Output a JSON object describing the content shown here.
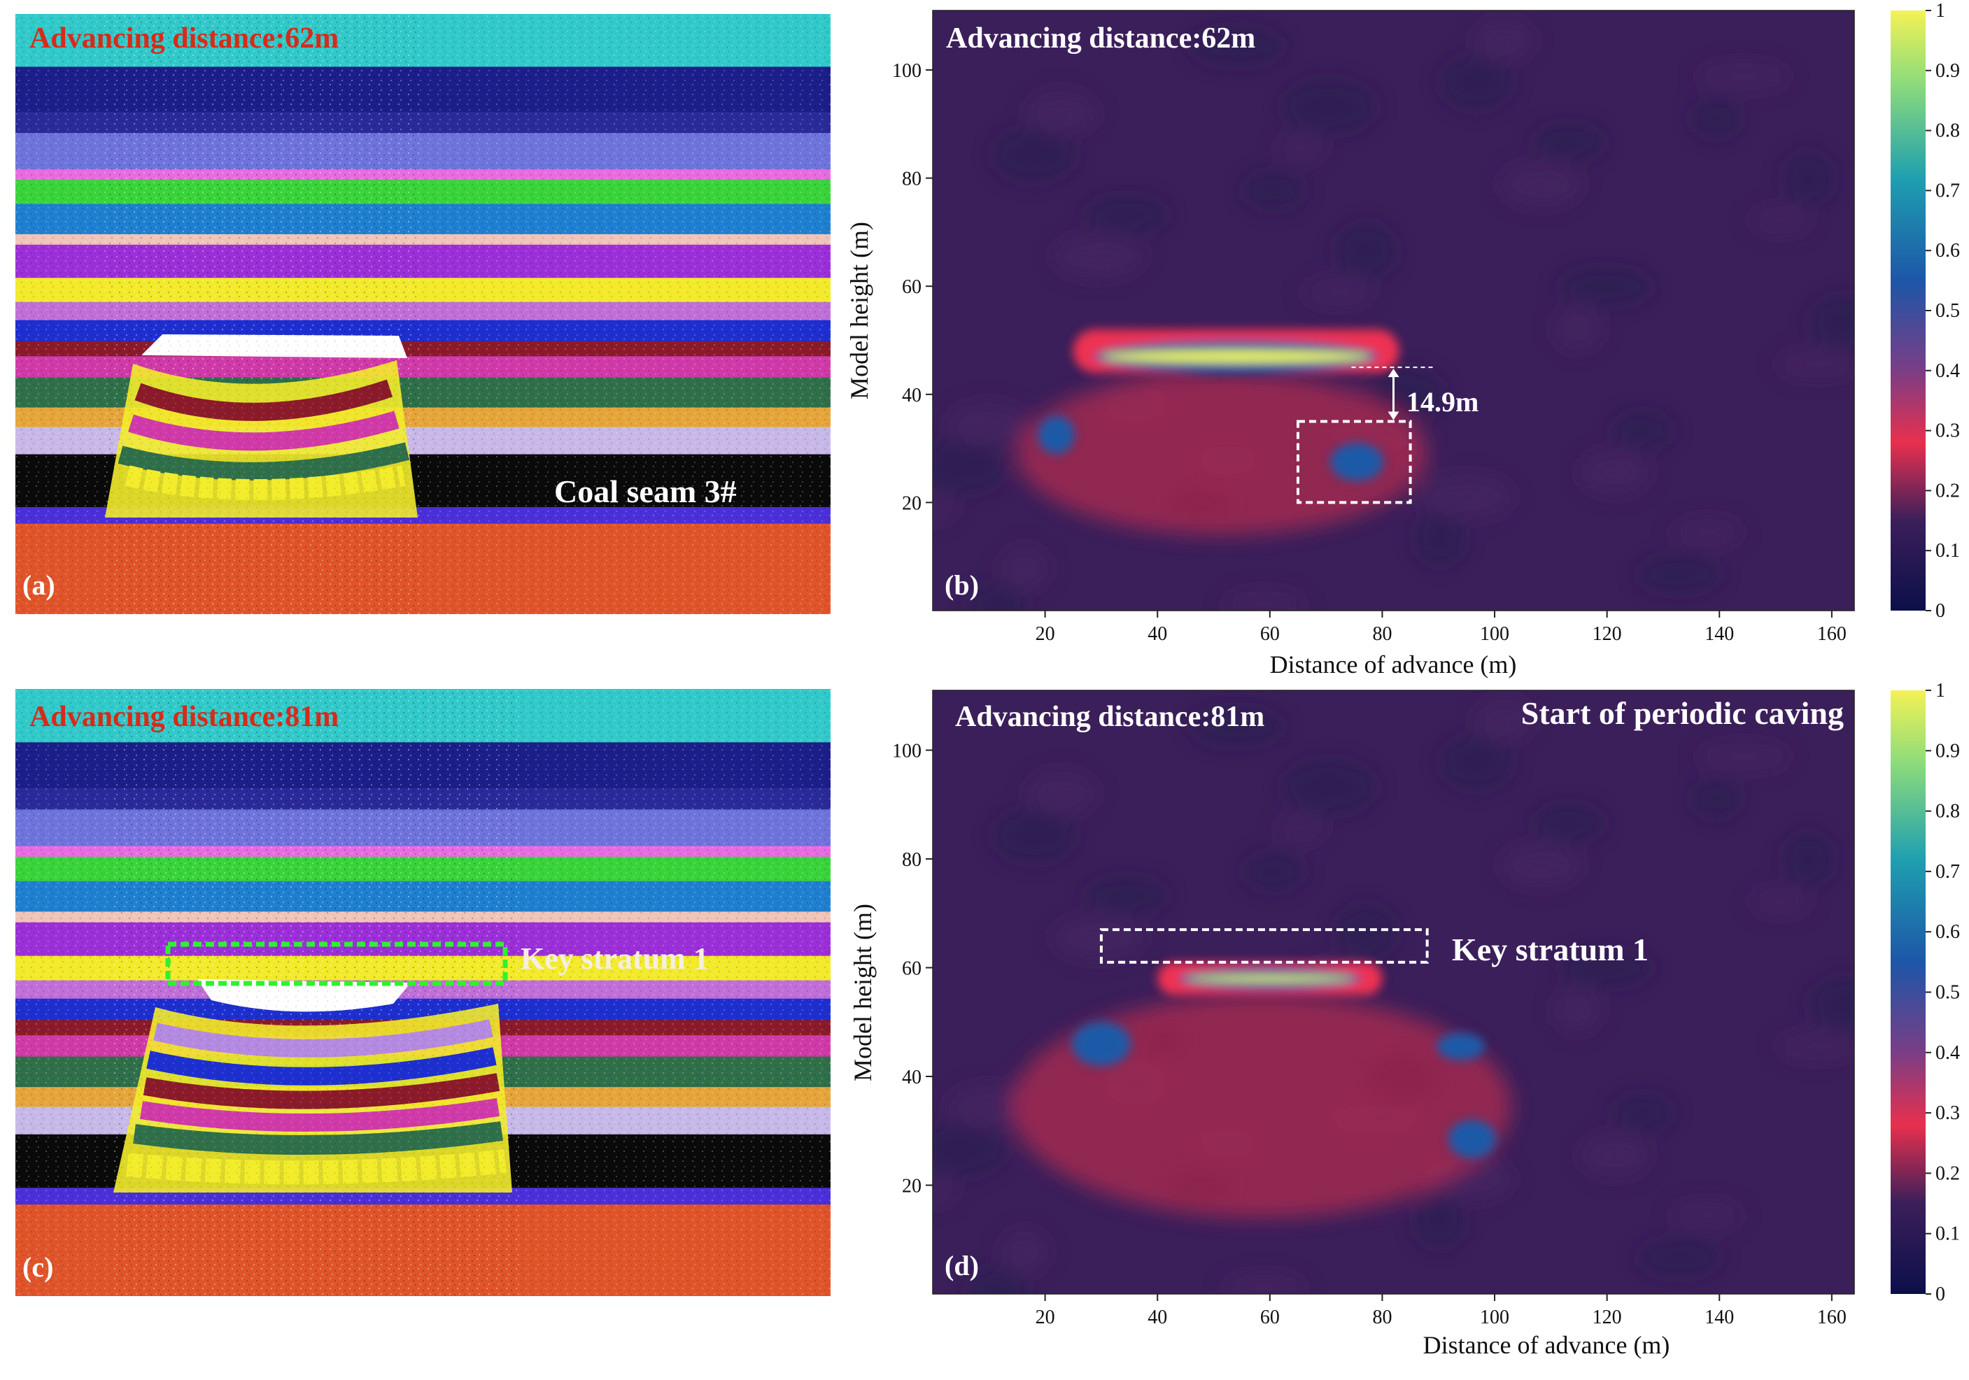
{
  "panels": {
    "a": {
      "label": "(a)",
      "title": "Advancing distance:62m",
      "annotation": "Coal seam 3#"
    },
    "b": {
      "label": "(b)",
      "title": "Advancing distance:62m",
      "dimension_label": "14.9m"
    },
    "c": {
      "label": "(c)",
      "title": "Advancing distance:81m",
      "annotation": "Key stratum 1"
    },
    "d": {
      "label": "(d)",
      "title": "Advancing distance:81m",
      "title_right": "Start of  periodic caving",
      "annotation": "Key stratum 1"
    }
  },
  "colors": {
    "title_red": "#d82a1a",
    "heatmap_background": "#3b1f5a",
    "highlight_box_white": "#ffffff",
    "highlight_box_green": "#2ef22e"
  },
  "chart_data": [
    {
      "type": "heatmap",
      "panel": "b",
      "xlabel": "Distance of advance (m)",
      "ylabel": "Model height (m)",
      "xlim": [
        0,
        164
      ],
      "ylim": [
        0,
        111
      ],
      "xticks": [
        20,
        40,
        60,
        80,
        100,
        120,
        140,
        160
      ],
      "yticks": [
        20,
        40,
        60,
        80,
        100
      ],
      "colorbar": {
        "range": [
          0,
          1
        ],
        "ticks": [
          "0",
          "0.1",
          "0.2",
          "0.3",
          "0.4",
          "0.5",
          "0.6",
          "0.7",
          "0.8",
          "0.9",
          "1"
        ]
      },
      "features": [
        {
          "kind": "band",
          "x": [
            25,
            83
          ],
          "y": [
            44,
            52
          ],
          "value": 0.25
        },
        {
          "kind": "hot",
          "x": [
            30,
            78
          ],
          "y": [
            45,
            49
          ],
          "value": 0.9
        },
        {
          "kind": "hot",
          "x": [
            20,
            24
          ],
          "y": [
            30,
            35
          ],
          "value": 0.5
        },
        {
          "kind": "hot",
          "x": [
            72,
            79
          ],
          "y": [
            25,
            30
          ],
          "value": 0.55
        },
        {
          "kind": "diffuse",
          "x": [
            15,
            88
          ],
          "y": [
            14,
            44
          ],
          "value": 0.2
        }
      ],
      "marked_region": {
        "x": [
          65,
          85
        ],
        "y": [
          20,
          35
        ]
      },
      "gap_measurement": {
        "x": 82,
        "y_from": 35,
        "y_to": 45,
        "value_m": 14.9
      }
    },
    {
      "type": "heatmap",
      "panel": "d",
      "xlabel": "Distance of advance (m)",
      "ylabel": "Model height (m)",
      "xlim": [
        0,
        164
      ],
      "ylim": [
        0,
        111
      ],
      "xticks": [
        20,
        40,
        60,
        80,
        100,
        120,
        140,
        160
      ],
      "yticks": [
        20,
        40,
        60,
        80,
        100
      ],
      "colorbar": {
        "range": [
          0,
          1
        ],
        "ticks": [
          "0",
          "0.1",
          "0.2",
          "0.3",
          "0.4",
          "0.5",
          "0.6",
          "0.7",
          "0.8",
          "0.9",
          "1"
        ]
      },
      "features": [
        {
          "kind": "band",
          "x": [
            40,
            80
          ],
          "y": [
            55,
            61
          ],
          "value": 0.3
        },
        {
          "kind": "hot",
          "x": [
            45,
            75
          ],
          "y": [
            57,
            59
          ],
          "value": 0.95
        },
        {
          "kind": "hot",
          "x": [
            26,
            34
          ],
          "y": [
            43,
            49
          ],
          "value": 0.5
        },
        {
          "kind": "hot",
          "x": [
            91,
            97
          ],
          "y": [
            44,
            47
          ],
          "value": 0.45
        },
        {
          "kind": "hot",
          "x": [
            93,
            99
          ],
          "y": [
            26,
            31
          ],
          "value": 0.5
        },
        {
          "kind": "diffuse",
          "x": [
            14,
            103
          ],
          "y": [
            14,
            55
          ],
          "value": 0.2
        }
      ],
      "marked_region": {
        "x": [
          30,
          88
        ],
        "y": [
          61,
          67
        ]
      }
    }
  ]
}
